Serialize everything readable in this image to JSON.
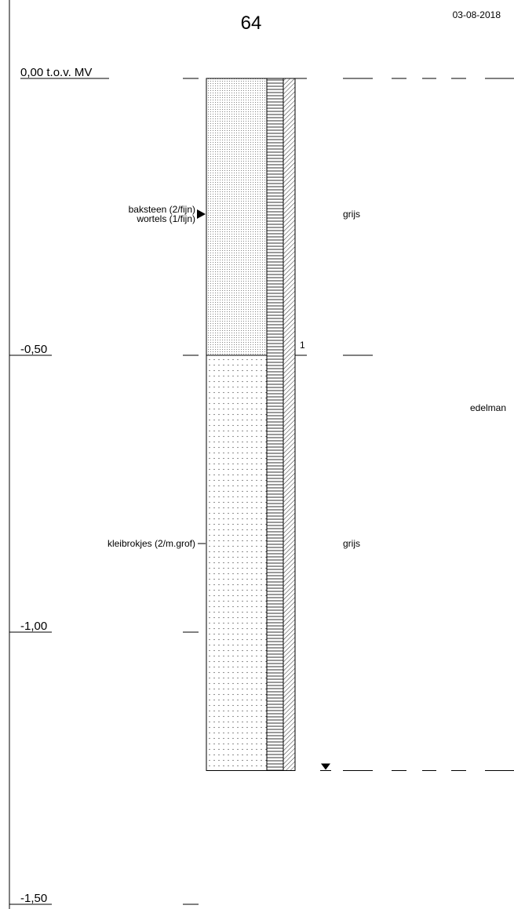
{
  "header": {
    "boring_number": "64",
    "date": "03-08-2018"
  },
  "depth_axis": {
    "top_label_value": "0,00",
    "top_label_suffix": " t.o.v. MV",
    "labels": [
      {
        "depth": 0.0,
        "text": ""
      },
      {
        "depth": 0.5,
        "text": "-0,50"
      },
      {
        "depth": 1.0,
        "text": "-1,00"
      },
      {
        "depth": 1.5,
        "text": "-1,50"
      }
    ]
  },
  "layers": [
    {
      "top": 0.0,
      "bottom": 0.5,
      "pattern": "fine-dots",
      "color": "grijs"
    },
    {
      "top": 0.5,
      "bottom": 1.25,
      "pattern": "coarse-dots",
      "color": "grijs"
    }
  ],
  "annotations": [
    {
      "depth": 0.245,
      "lines": [
        "baksteen (2/fijn)",
        "wortels (1/fijn)"
      ],
      "marker": "triangle"
    },
    {
      "depth": 0.84,
      "lines": [
        "kleibrokjes (2/m.grof)"
      ],
      "marker": "tick"
    }
  ],
  "sample": {
    "number": "1",
    "depth": 0.49
  },
  "method": {
    "label": "edelman",
    "depth": 0.095
  },
  "groundwater": {
    "depth": 1.25
  }
}
